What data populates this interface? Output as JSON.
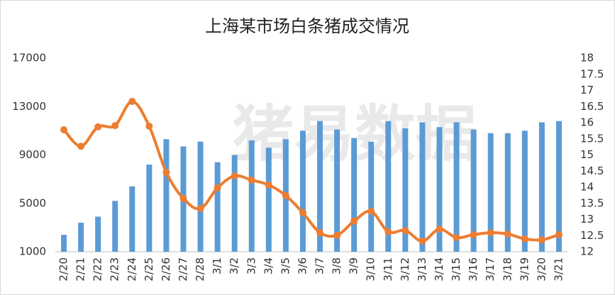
{
  "chart_data": {
    "type": "bar_line",
    "title": "上海某市场白条猪成交情况",
    "watermark": "猪易数据",
    "categories": [
      "2/20",
      "2/21",
      "2/22",
      "2/23",
      "2/24",
      "2/25",
      "2/26",
      "2/27",
      "2/28",
      "3/1",
      "3/2",
      "3/3",
      "3/4",
      "3/5",
      "3/6",
      "3/7",
      "3/8",
      "3/9",
      "3/10",
      "3/11",
      "3/12",
      "3/13",
      "3/14",
      "3/15",
      "3/16",
      "3/17",
      "3/18",
      "3/19",
      "3/20",
      "3/21"
    ],
    "series": [
      {
        "type": "bar",
        "color": "#5b9bd5",
        "values": [
          2400,
          3400,
          3900,
          5200,
          6400,
          8200,
          10300,
          9700,
          10100,
          8400,
          9000,
          10200,
          9600,
          10300,
          11000,
          11800,
          11100,
          10400,
          10100,
          11800,
          11200,
          11700,
          11300,
          11700,
          11100,
          10800,
          10800,
          11000,
          11700,
          11800
        ]
      },
      {
        "type": "line",
        "axis": "y2",
        "color": "#ed7d31",
        "values": [
          15.78,
          15.27,
          15.87,
          15.91,
          16.66,
          15.89,
          14.46,
          13.65,
          13.34,
          13.98,
          14.35,
          14.22,
          14.07,
          13.74,
          13.21,
          12.59,
          12.51,
          12.95,
          13.25,
          12.62,
          12.66,
          12.33,
          12.7,
          12.44,
          12.53,
          12.59,
          12.55,
          12.4,
          12.37,
          12.53
        ]
      }
    ],
    "ylim": [
      1000,
      17000
    ],
    "yticks": [
      1000,
      5000,
      9000,
      13000,
      17000
    ],
    "y2lim": [
      12,
      18
    ],
    "y2ticks": [
      12,
      12.5,
      13,
      13.5,
      14,
      14.5,
      15,
      15.5,
      16,
      16.5,
      17,
      17.5,
      18
    ],
    "grid": false
  }
}
